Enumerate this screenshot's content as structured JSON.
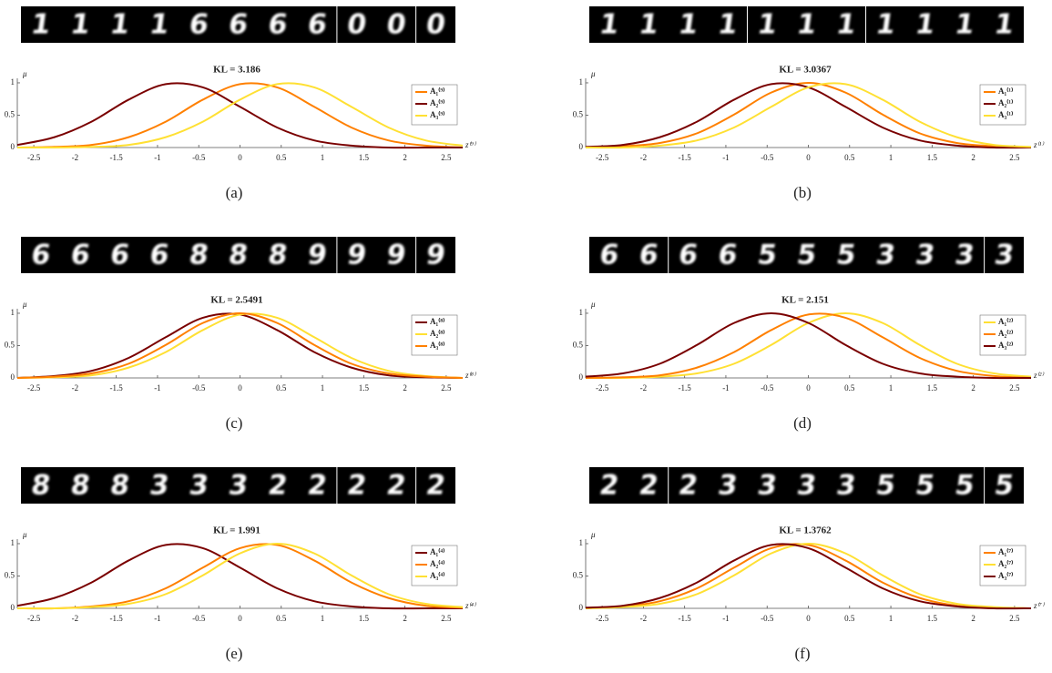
{
  "chart_data": [
    {
      "type": "line",
      "title": "KL = 3.186",
      "xlabel": "z⁽⁹⁾",
      "ylabel": "μ",
      "caption": "(a)",
      "strip": [
        "1",
        "1",
        "1",
        "1",
        "6",
        "6",
        "6",
        "6",
        "0",
        "0",
        "0"
      ],
      "x": [
        -2.7,
        -2.25,
        -1.8,
        -1.35,
        -0.9,
        -0.45,
        0,
        0.45,
        0.9,
        1.35,
        1.8,
        2.25,
        2.7
      ],
      "series": [
        {
          "name": "A₁⁽⁹⁾",
          "color": "#ff8000",
          "values": [
            0,
            0.01,
            0.04,
            0.16,
            0.4,
            0.74,
            0.98,
            0.93,
            0.63,
            0.31,
            0.11,
            0.03,
            0
          ]
        },
        {
          "name": "A₂⁽⁹⁾",
          "color": "#7a0000",
          "values": [
            0.04,
            0.16,
            0.4,
            0.74,
            0.98,
            0.93,
            0.63,
            0.31,
            0.11,
            0.03,
            0,
            0,
            0
          ]
        },
        {
          "name": "A₃⁽⁹⁾",
          "color": "#ffe033",
          "values": [
            0,
            0,
            0.01,
            0.04,
            0.16,
            0.4,
            0.74,
            0.98,
            0.93,
            0.63,
            0.31,
            0.11,
            0.03
          ]
        }
      ],
      "xlim": [
        -2.7,
        2.7
      ],
      "ylim": [
        0,
        1.07
      ],
      "xticks": [
        -2.5,
        -2,
        -1.5,
        -1,
        -0.5,
        0,
        0.5,
        1,
        1.5,
        2,
        2.5
      ],
      "yticks": [
        0,
        0.5,
        1
      ]
    },
    {
      "type": "line",
      "title": "KL = 3.0367",
      "xlabel": "z⁽¹⁾",
      "ylabel": "μ",
      "caption": "(b)",
      "strip": [
        "1",
        "1",
        "1",
        "1",
        "1",
        "1",
        "1",
        "1",
        "1",
        "1",
        "1"
      ],
      "x": [
        -2.7,
        -2.25,
        -1.8,
        -1.35,
        -0.9,
        -0.45,
        0,
        0.45,
        0.9,
        1.35,
        1.8,
        2.25,
        2.7
      ],
      "series": [
        {
          "name": "A₁⁽¹⁾",
          "color": "#ff8000",
          "values": [
            0,
            0.02,
            0.07,
            0.22,
            0.51,
            0.85,
            1,
            0.85,
            0.51,
            0.22,
            0.07,
            0.02,
            0
          ]
        },
        {
          "name": "A₂⁽¹⁾",
          "color": "#7a0000",
          "values": [
            0.01,
            0.04,
            0.16,
            0.4,
            0.74,
            0.98,
            0.93,
            0.63,
            0.31,
            0.11,
            0.03,
            0,
            0
          ]
        },
        {
          "name": "A₃⁽¹⁾",
          "color": "#ffe033",
          "values": [
            0,
            0,
            0.03,
            0.11,
            0.31,
            0.63,
            0.93,
            0.98,
            0.74,
            0.4,
            0.16,
            0.04,
            0.01
          ]
        }
      ],
      "xlim": [
        -2.7,
        2.7
      ],
      "ylim": [
        0,
        1.07
      ],
      "xticks": [
        -2.5,
        -2,
        -1.5,
        -1,
        -0.5,
        0,
        0.5,
        1,
        1.5,
        2,
        2.5
      ],
      "yticks": [
        0,
        0.5,
        1
      ]
    },
    {
      "type": "line",
      "title": "KL = 2.5491",
      "xlabel": "z⁽⁸⁾",
      "ylabel": "μ",
      "caption": "(c)",
      "strip": [
        "6",
        "6",
        "6",
        "6",
        "8",
        "8",
        "8",
        "9",
        "9",
        "9",
        "9"
      ],
      "x": [
        -2.7,
        -2.25,
        -1.8,
        -1.35,
        -0.9,
        -0.45,
        0,
        0.45,
        0.9,
        1.35,
        1.8,
        2.25,
        2.7
      ],
      "series": [
        {
          "name": "A₁⁽⁸⁾",
          "color": "#7a0000",
          "values": [
            0,
            0.03,
            0.11,
            0.31,
            0.63,
            0.93,
            0.98,
            0.74,
            0.4,
            0.16,
            0.04,
            0.01,
            0
          ]
        },
        {
          "name": "A₂⁽⁸⁾",
          "color": "#ffe033",
          "values": [
            0,
            0.01,
            0.04,
            0.16,
            0.4,
            0.74,
            0.98,
            0.93,
            0.63,
            0.31,
            0.11,
            0.03,
            0
          ]
        },
        {
          "name": "A₃⁽⁸⁾",
          "color": "#ff8000",
          "values": [
            0,
            0.02,
            0.07,
            0.22,
            0.51,
            0.85,
            1,
            0.85,
            0.51,
            0.22,
            0.07,
            0.02,
            0
          ]
        }
      ],
      "xlim": [
        -2.7,
        2.7
      ],
      "ylim": [
        0,
        1.07
      ],
      "xticks": [
        -2.5,
        -2,
        -1.5,
        -1,
        -0.5,
        0,
        0.5,
        1,
        1.5,
        2,
        2.5
      ],
      "yticks": [
        0,
        0.5,
        1
      ]
    },
    {
      "type": "line",
      "title": "KL = 2.151",
      "xlabel": "z⁽²⁾",
      "ylabel": "μ",
      "caption": "(d)",
      "strip": [
        "6",
        "6",
        "6",
        "6",
        "5",
        "5",
        "5",
        "3",
        "3",
        "3",
        "3"
      ],
      "x": [
        -2.7,
        -2.25,
        -1.8,
        -1.35,
        -0.9,
        -0.45,
        0,
        0.45,
        0.9,
        1.35,
        1.8,
        2.25,
        2.7
      ],
      "series": [
        {
          "name": "A₁⁽²⁾",
          "color": "#ffe033",
          "values": [
            0,
            0,
            0.02,
            0.07,
            0.22,
            0.51,
            0.85,
            1,
            0.85,
            0.51,
            0.22,
            0.07,
            0.02
          ]
        },
        {
          "name": "A₂⁽²⁾",
          "color": "#ff8000",
          "values": [
            0,
            0.01,
            0.04,
            0.16,
            0.4,
            0.74,
            0.98,
            0.93,
            0.63,
            0.31,
            0.11,
            0.03,
            0
          ]
        },
        {
          "name": "A₃⁽²⁾",
          "color": "#7a0000",
          "values": [
            0.02,
            0.07,
            0.22,
            0.51,
            0.85,
            1,
            0.85,
            0.51,
            0.22,
            0.07,
            0.02,
            0,
            0
          ]
        }
      ],
      "xlim": [
        -2.7,
        2.7
      ],
      "ylim": [
        0,
        1.07
      ],
      "xticks": [
        -2.5,
        -2,
        -1.5,
        -1,
        -0.5,
        0,
        0.5,
        1,
        1.5,
        2,
        2.5
      ],
      "yticks": [
        0,
        0.5,
        1
      ]
    },
    {
      "type": "line",
      "title": "KL = 1.991",
      "xlabel": "z⁽⁴⁾",
      "ylabel": "μ",
      "caption": "(e)",
      "strip": [
        "8",
        "8",
        "8",
        "3",
        "3",
        "3",
        "2",
        "2",
        "2",
        "2",
        "2"
      ],
      "x": [
        -2.7,
        -2.25,
        -1.8,
        -1.35,
        -0.9,
        -0.45,
        0,
        0.45,
        0.9,
        1.35,
        1.8,
        2.25,
        2.7
      ],
      "series": [
        {
          "name": "A₁⁽⁴⁾",
          "color": "#7a0000",
          "values": [
            0.04,
            0.16,
            0.4,
            0.74,
            0.98,
            0.93,
            0.63,
            0.31,
            0.11,
            0.03,
            0,
            0,
            0
          ]
        },
        {
          "name": "A₂⁽⁴⁾",
          "color": "#ff8000",
          "values": [
            0,
            0,
            0.03,
            0.11,
            0.31,
            0.63,
            0.93,
            0.98,
            0.74,
            0.4,
            0.16,
            0.04,
            0.01
          ]
        },
        {
          "name": "A₃⁽⁴⁾",
          "color": "#ffe033",
          "values": [
            0,
            0,
            0.02,
            0.07,
            0.22,
            0.51,
            0.85,
            1,
            0.85,
            0.51,
            0.22,
            0.07,
            0.02
          ]
        }
      ],
      "xlim": [
        -2.7,
        2.7
      ],
      "ylim": [
        0,
        1.07
      ],
      "xticks": [
        -2.5,
        -2,
        -1.5,
        -1,
        -0.5,
        0,
        0.5,
        1,
        1.5,
        2,
        2.5
      ],
      "yticks": [
        0,
        0.5,
        1
      ]
    },
    {
      "type": "line",
      "title": "KL = 1.3762",
      "xlabel": "z⁽⁷⁾",
      "ylabel": "μ",
      "caption": "(f)",
      "strip": [
        "2",
        "2",
        "2",
        "3",
        "3",
        "3",
        "3",
        "5",
        "5",
        "5",
        "5"
      ],
      "x": [
        -2.7,
        -2.25,
        -1.8,
        -1.35,
        -0.9,
        -0.45,
        0,
        0.45,
        0.9,
        1.35,
        1.8,
        2.25,
        2.7
      ],
      "series": [
        {
          "name": "A₁⁽⁷⁾",
          "color": "#ff8000",
          "values": [
            0,
            0.03,
            0.11,
            0.31,
            0.63,
            0.93,
            0.98,
            0.74,
            0.4,
            0.16,
            0.04,
            0.01,
            0
          ]
        },
        {
          "name": "A₂⁽⁷⁾",
          "color": "#ffe033",
          "values": [
            0,
            0.02,
            0.07,
            0.22,
            0.51,
            0.85,
            1,
            0.85,
            0.51,
            0.22,
            0.07,
            0.02,
            0
          ]
        },
        {
          "name": "A₃⁽⁷⁾",
          "color": "#7a0000",
          "values": [
            0.01,
            0.04,
            0.16,
            0.4,
            0.74,
            0.98,
            0.93,
            0.63,
            0.31,
            0.11,
            0.03,
            0,
            0
          ]
        }
      ],
      "xlim": [
        -2.7,
        2.7
      ],
      "ylim": [
        0,
        1.07
      ],
      "xticks": [
        -2.5,
        -2,
        -1.5,
        -1,
        -0.5,
        0,
        0.5,
        1,
        1.5,
        2,
        2.5
      ],
      "yticks": [
        0,
        0.5,
        1
      ]
    }
  ]
}
